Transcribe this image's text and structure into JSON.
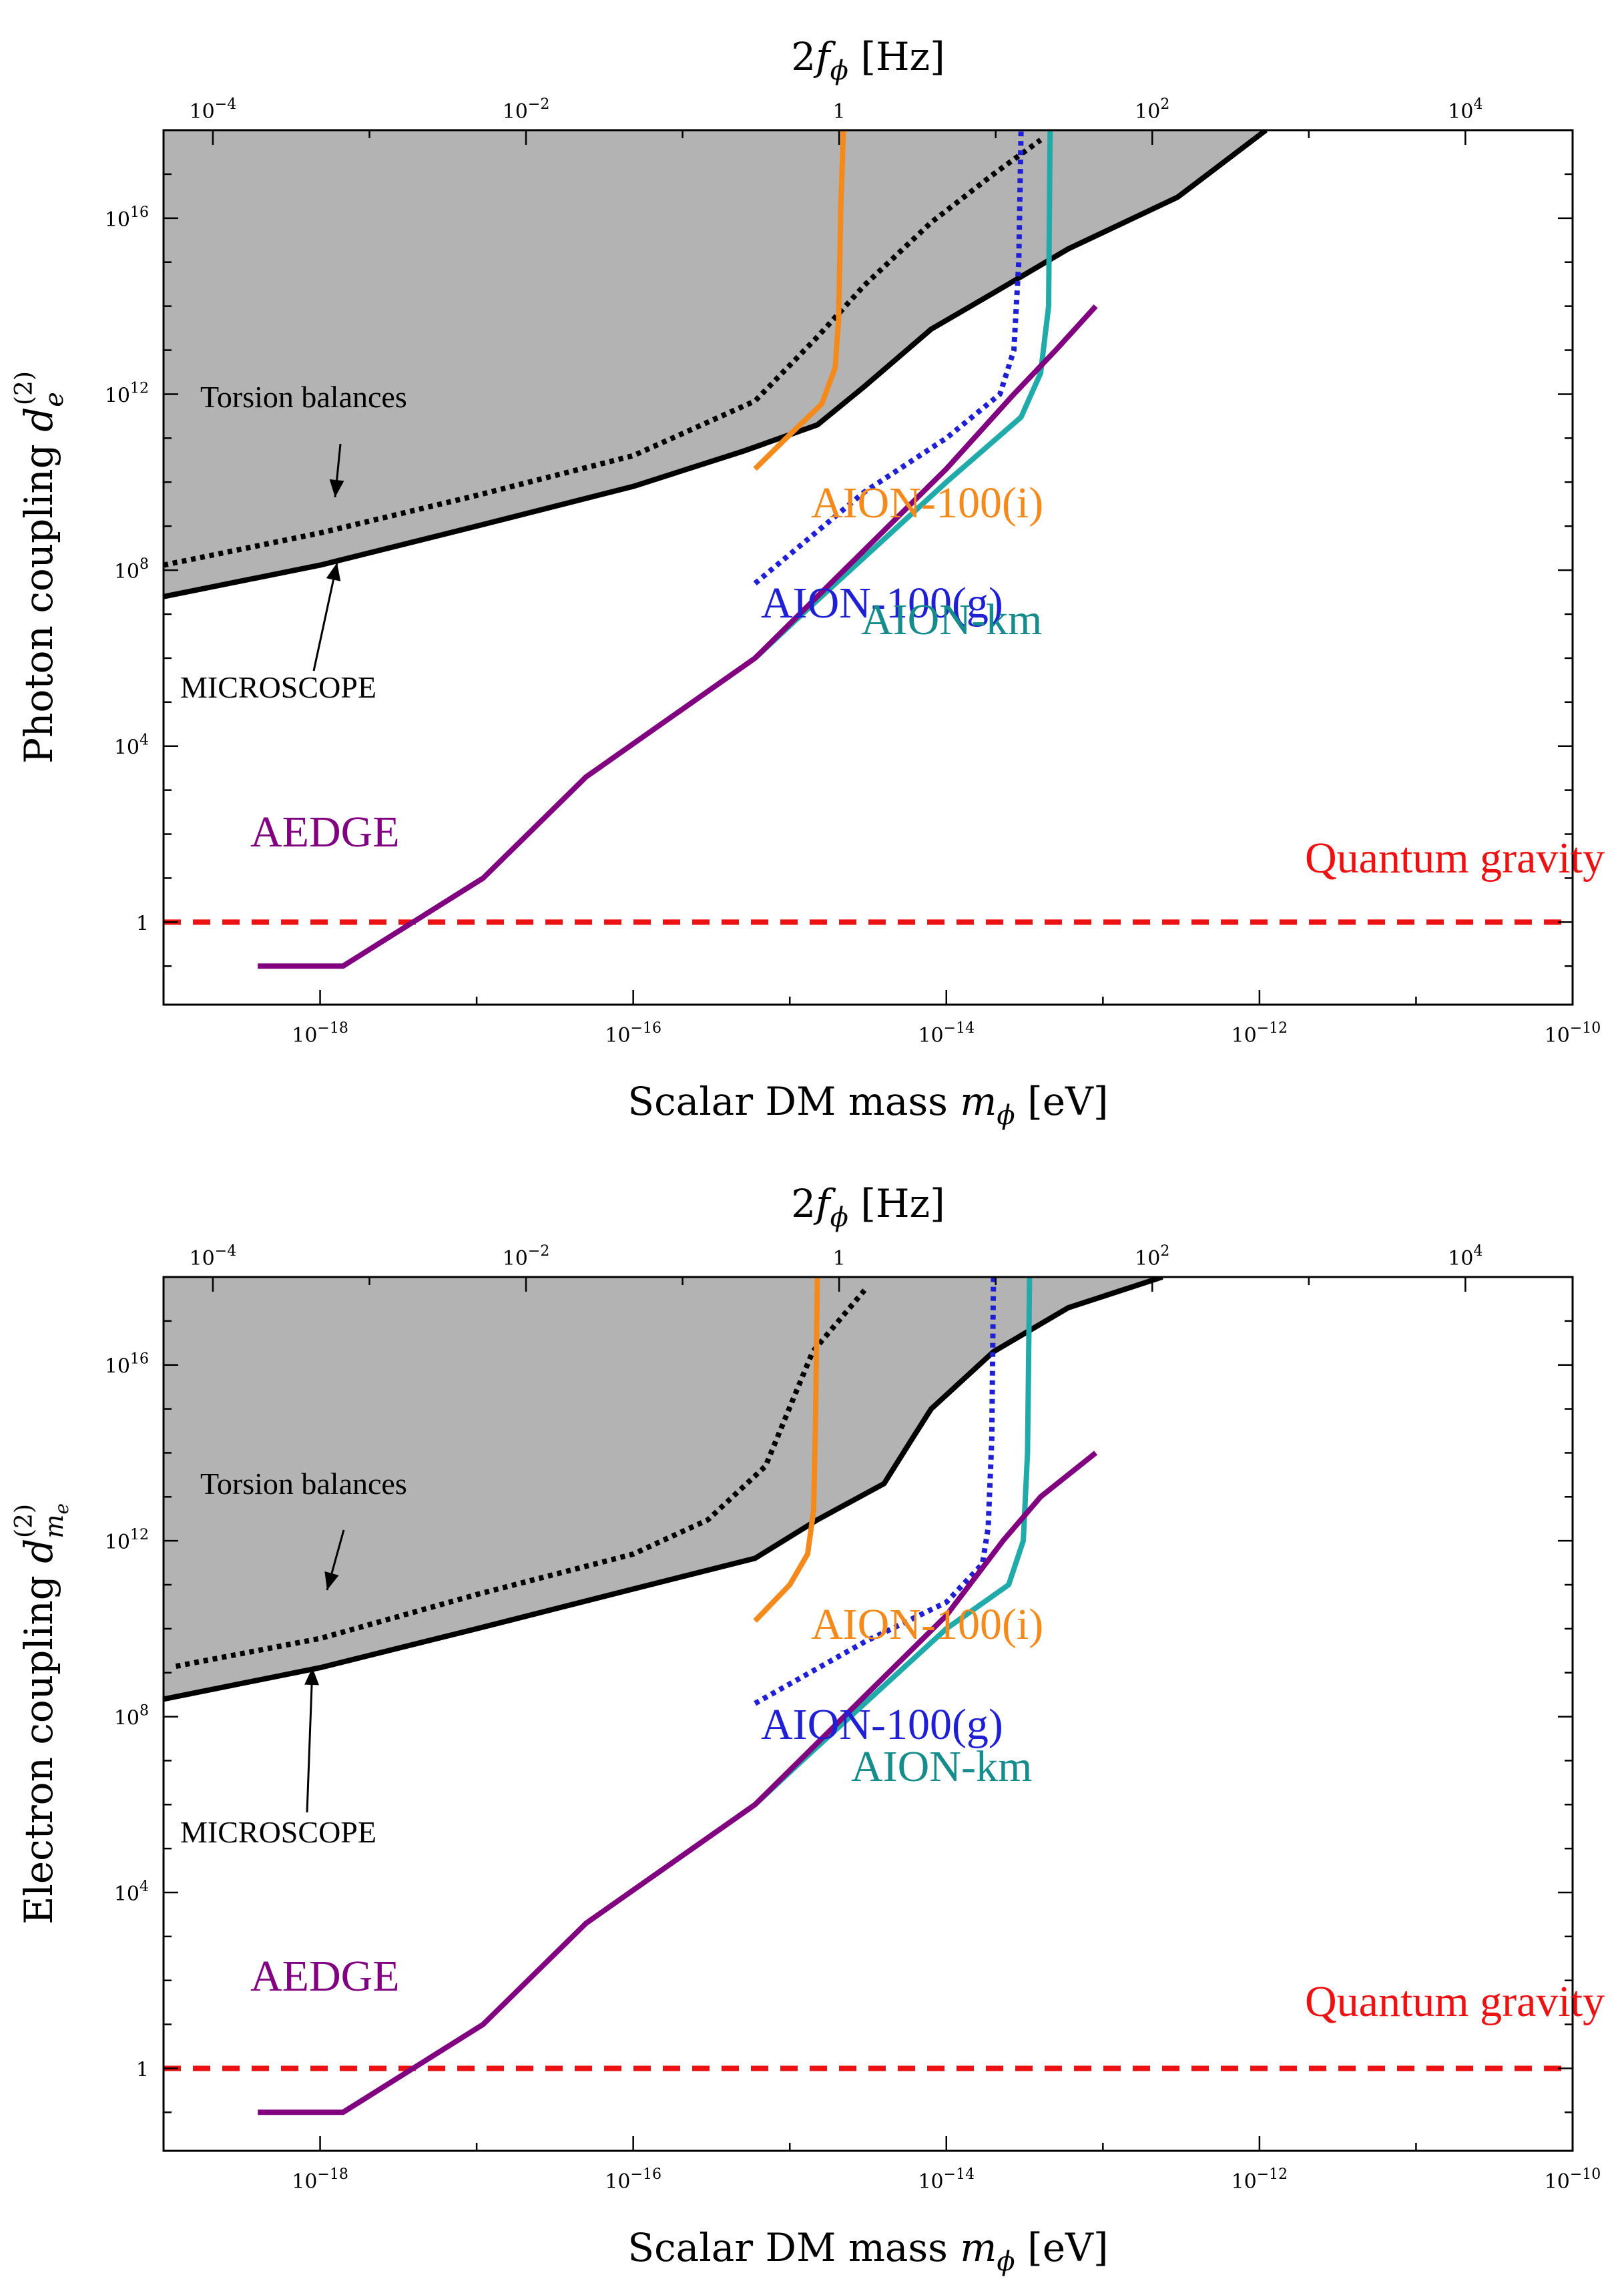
{
  "chart_data": [
    {
      "type": "line",
      "xlabel": "Scalar DM mass m_ϕ [eV]",
      "xlabel_parts": [
        "Scalar DM mass ",
        "m",
        "ϕ",
        " [eV]"
      ],
      "x2label": "2f_ϕ [Hz]",
      "x2label_parts": [
        "2",
        "f",
        "ϕ",
        " [Hz]"
      ],
      "ylabel": "Photon coupling d_e^(2)",
      "ylabel_parts": [
        "Photon coupling ",
        "d",
        "e",
        "(2)"
      ],
      "xscale": "log",
      "yscale": "log",
      "xlim": [
        1e-19,
        1e-10
      ],
      "ylim": [
        0.0133,
        1e+18
      ],
      "x2lim": [
        4.84e-05,
        48400
      ],
      "x_ticks": [
        1e-18,
        1e-16,
        1e-14,
        1e-12,
        1e-10
      ],
      "x_tick_labels": [
        [
          "10",
          "−18"
        ],
        [
          "10",
          "−16"
        ],
        [
          "10",
          "−14"
        ],
        [
          "10",
          "−12"
        ],
        [
          "10",
          "−10"
        ]
      ],
      "x2_ticks": [
        0.0001,
        0.01,
        1,
        100,
        10000
      ],
      "x2_tick_labels": [
        [
          "10",
          "−4"
        ],
        [
          "10",
          "−2"
        ],
        [
          "1",
          ""
        ],
        [
          "10",
          "2"
        ],
        [
          "10",
          "4"
        ]
      ],
      "y_ticks": [
        1,
        10000,
        100000000.0,
        1000000000000.0,
        1e+16
      ],
      "y_tick_labels": [
        [
          "1",
          ""
        ],
        [
          "10",
          "4"
        ],
        [
          "10",
          "8"
        ],
        [
          "10",
          "12"
        ],
        [
          "10",
          "16"
        ]
      ],
      "series": [
        {
          "key": "microscope",
          "color": "#000000",
          "style": "solid",
          "fill": "#b3b3b3",
          "x": [
            1e-19,
            1e-18,
            1e-17,
            1e-16,
            5e-16,
            1.5e-15,
            3e-15,
            8e-15,
            2e-14,
            6e-14,
            3e-13,
            1.1e-12
          ],
          "y": [
            25000000.0,
            130000000.0,
            1000000000.0,
            8000000000.0,
            50000000000.0,
            200000000000.0,
            1500000000000.0,
            30000000000000.0,
            200000000000000.0,
            2000000000000000.0,
            3e+16,
            1e+18
          ]
        },
        {
          "key": "torsion",
          "color": "#000000",
          "style": "dotted",
          "x": [
            1e-19,
            1e-18,
            1e-17,
            1e-16,
            6e-16,
            1.5e-15,
            3e-15,
            8e-15,
            2e-14,
            4e-14
          ],
          "y": [
            130000000.0,
            700000000.0,
            5000000000.0,
            40000000000.0,
            700000000000.0,
            20000000000000.0,
            300000000000000.0,
            8000000000000000.0,
            1e+17,
            6e+17
          ]
        },
        {
          "key": "aion100i",
          "color": "#f58a1c",
          "style": "solid",
          "x": [
            6e-16,
            1e-15,
            1.6e-15,
            1.95e-15,
            2.05e-15,
            2.12e-15,
            2.2e-15
          ],
          "y": [
            20000000000.0,
            120000000000.0,
            600000000000.0,
            4000000000000.0,
            50000000000000.0,
            2e+16,
            1e+18
          ]
        },
        {
          "key": "aion100g",
          "color": "#1f1fd6",
          "style": "dotted",
          "x": [
            6e-16,
            3e-15,
            1e-14,
            2.2e-14,
            2.7e-14,
            2.9e-14,
            3e-14
          ],
          "y": [
            50000000.0,
            6000000000.0,
            100000000000.0,
            1000000000000.0,
            10000000000000.0,
            1000000000000000.0,
            1e+18
          ]
        },
        {
          "key": "aionkm",
          "color": "#20aaaa",
          "style": "solid",
          "x": [
            6e-16,
            1.2e-15,
            1e-14,
            3e-14,
            4e-14,
            4.5e-14,
            4.6e-14
          ],
          "y": [
            1000000.0,
            10000000.0,
            10000000000.0,
            300000000000.0,
            3000000000000.0,
            100000000000000.0,
            1e+18
          ]
        },
        {
          "key": "aedge",
          "color": "#800080",
          "style": "solid",
          "x": [
            4e-19,
            1.4e-18,
            1.1e-17,
            5e-17,
            6e-16,
            1e-14,
            2.7e-14,
            5e-14,
            9e-14
          ],
          "y": [
            0.1,
            0.1,
            10,
            2000.0,
            1000000.0,
            20000000000.0,
            1000000000000.0,
            10000000000000.0,
            100000000000000.0
          ]
        },
        {
          "key": "qg",
          "color": "#ee1111",
          "style": "dashed",
          "x": [
            1e-19,
            1e-10
          ],
          "y": [
            1,
            1
          ]
        }
      ],
      "labels": {
        "torsion": "Torsion balances",
        "microscope": "MICROSCOPE",
        "aion100i": "AION-100(i)",
        "aion100g": "AION-100(g)",
        "aionkm": "AION-km",
        "aedge": "AEDGE",
        "qg": "Quantum gravity"
      },
      "label_colors": {
        "aion100i": "#f58a1c",
        "aion100g": "#1f1fd6",
        "aionkm": "#168c8c",
        "aedge": "#800080",
        "qg": "#ee1111"
      }
    },
    {
      "type": "line",
      "xlabel": "Scalar DM mass m_ϕ [eV]",
      "xlabel_parts": [
        "Scalar DM mass ",
        "m",
        "ϕ",
        " [eV]"
      ],
      "x2label": "2f_ϕ [Hz]",
      "x2label_parts": [
        "2",
        "f",
        "ϕ",
        " [Hz]"
      ],
      "ylabel": "Electron coupling d_me^(2)",
      "ylabel_parts": [
        "Electron coupling ",
        "d",
        "m",
        "e",
        "(2)"
      ],
      "xscale": "log",
      "yscale": "log",
      "xlim": [
        1e-19,
        1e-10
      ],
      "ylim": [
        0.0133,
        1e+18
      ],
      "x2lim": [
        4.84e-05,
        48400
      ],
      "x_ticks": [
        1e-18,
        1e-16,
        1e-14,
        1e-12,
        1e-10
      ],
      "x_tick_labels": [
        [
          "10",
          "−18"
        ],
        [
          "10",
          "−16"
        ],
        [
          "10",
          "−14"
        ],
        [
          "10",
          "−12"
        ],
        [
          "10",
          "−10"
        ]
      ],
      "x2_ticks": [
        0.0001,
        0.01,
        1,
        100,
        10000
      ],
      "x2_tick_labels": [
        [
          "10",
          "−4"
        ],
        [
          "10",
          "−2"
        ],
        [
          "1",
          ""
        ],
        [
          "10",
          "2"
        ],
        [
          "10",
          "4"
        ]
      ],
      "y_ticks": [
        1,
        10000,
        100000000.0,
        1000000000000.0,
        1e+16
      ],
      "y_tick_labels": [
        [
          "1",
          ""
        ],
        [
          "10",
          "4"
        ],
        [
          "10",
          "8"
        ],
        [
          "10",
          "12"
        ],
        [
          "10",
          "16"
        ]
      ],
      "series": [
        {
          "key": "microscope",
          "color": "#000000",
          "style": "solid",
          "fill": "#b3b3b3",
          "x": [
            1e-19,
            1e-18,
            1e-17,
            1e-16,
            6e-16,
            1.5e-15,
            4e-15,
            6e-15,
            8e-15,
            2e-14,
            6e-14,
            2.4e-13
          ],
          "y": [
            250000000.0,
            1300000000.0,
            10000000000.0,
            80000000000.0,
            400000000000.0,
            3000000000000.0,
            20000000000000.0,
            200000000000000.0,
            1000000000000000.0,
            2e+16,
            2e+17,
            1e+18
          ]
        },
        {
          "key": "torsion",
          "color": "#000000",
          "style": "dotted",
          "x": [
            1.2e-19,
            1e-18,
            1e-17,
            1e-16,
            3e-16,
            7e-16,
            1.4e-15,
            3e-15
          ],
          "y": [
            1400000000.0,
            6000000000.0,
            60000000000.0,
            500000000000.0,
            3000000000000.0,
            50000000000000.0,
            2e+16,
            5e+17
          ]
        },
        {
          "key": "aion100i",
          "color": "#f58a1c",
          "style": "solid",
          "x": [
            6e-16,
            1e-15,
            1.3e-15,
            1.42e-15,
            1.46e-15,
            1.5e-15
          ],
          "y": [
            15000000000.0,
            100000000000.0,
            500000000000.0,
            5000000000000.0,
            500000000000000.0,
            1e+18
          ]
        },
        {
          "key": "aion100g",
          "color": "#1f1fd6",
          "style": "dotted",
          "x": [
            6e-16,
            3e-15,
            1e-14,
            1.7e-14,
            1.85e-14,
            1.95e-14,
            2e-14
          ],
          "y": [
            200000000.0,
            5000000000.0,
            40000000000.0,
            300000000000.0,
            2000000000000.0,
            200000000000000.0,
            1e+18
          ]
        },
        {
          "key": "aionkm",
          "color": "#20aaaa",
          "style": "solid",
          "x": [
            6e-16,
            1.2e-15,
            1e-14,
            2.5e-14,
            3.1e-14,
            3.3e-14,
            3.4e-14
          ],
          "y": [
            1000000.0,
            10000000.0,
            10000000000.0,
            100000000000.0,
            1000000000000.0,
            100000000000000.0,
            1e+18
          ]
        },
        {
          "key": "aedge",
          "color": "#800080",
          "style": "solid",
          "x": [
            4e-19,
            1.4e-18,
            1.1e-17,
            5e-17,
            6e-16,
            1e-14,
            2.3e-14,
            4e-14,
            9e-14
          ],
          "y": [
            0.1,
            0.1,
            10,
            2000.0,
            1000000.0,
            20000000000.0,
            1000000000000.0,
            10000000000000.0,
            100000000000000.0
          ]
        },
        {
          "key": "qg",
          "color": "#ee1111",
          "style": "dashed",
          "x": [
            1e-19,
            1e-10
          ],
          "y": [
            1,
            1
          ]
        }
      ],
      "labels": {
        "torsion": "Torsion balances",
        "microscope": "MICROSCOPE",
        "aion100i": "AION-100(i)",
        "aion100g": "AION-100(g)",
        "aionkm": "AION-km",
        "aedge": "AEDGE",
        "qg": "Quantum gravity"
      },
      "label_colors": {
        "aion100i": "#f58a1c",
        "aion100g": "#1f1fd6",
        "aionkm": "#168c8c",
        "aedge": "#800080",
        "qg": "#ee1111"
      }
    }
  ]
}
